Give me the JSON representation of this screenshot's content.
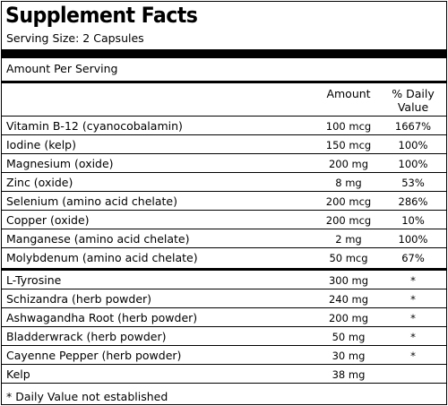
{
  "label": {
    "title": "Supplement Facts",
    "serving_size": "Serving Size: 2 Capsules",
    "amount_per_serving": "Amount Per Serving",
    "col_amount": "Amount",
    "col_dv_line1": "% Daily",
    "col_dv_line2": "Value",
    "section1": [
      {
        "name": "Vitamin B-12 (cyanocobalamin)",
        "amount": "100 mcg",
        "dv": "1667%"
      },
      {
        "name": "Iodine (kelp)",
        "amount": "150 mcg",
        "dv": "100%"
      },
      {
        "name": "Magnesium (oxide)",
        "amount": "200 mg",
        "dv": "100%"
      },
      {
        "name": "Zinc (oxide)",
        "amount": "8 mg",
        "dv": "53%"
      },
      {
        "name": "Selenium (amino acid chelate)",
        "amount": "200 mcg",
        "dv": "286%"
      },
      {
        "name": "Copper (oxide)",
        "amount": "200 mcg",
        "dv": "10%"
      },
      {
        "name": "Manganese (amino acid chelate)",
        "amount": "2 mg",
        "dv": "100%"
      },
      {
        "name": "Molybdenum (amino acid chelate)",
        "amount": "50 mcg",
        "dv": "67%"
      }
    ],
    "section2": [
      {
        "name": "L-Tyrosine",
        "amount": "300 mg",
        "dv": "*"
      },
      {
        "name": "Schizandra (herb powder)",
        "amount": "240 mg",
        "dv": "*"
      },
      {
        "name": "Ashwagandha Root (herb powder)",
        "amount": "200 mg",
        "dv": "*"
      },
      {
        "name": "Bladderwrack (herb powder)",
        "amount": "50 mg",
        "dv": "*"
      },
      {
        "name": "Cayenne Pepper (herb powder)",
        "amount": "30 mg",
        "dv": "*"
      },
      {
        "name": "Kelp",
        "amount": "38 mg",
        "dv": ""
      }
    ],
    "footnote": "* Daily Value not established"
  }
}
